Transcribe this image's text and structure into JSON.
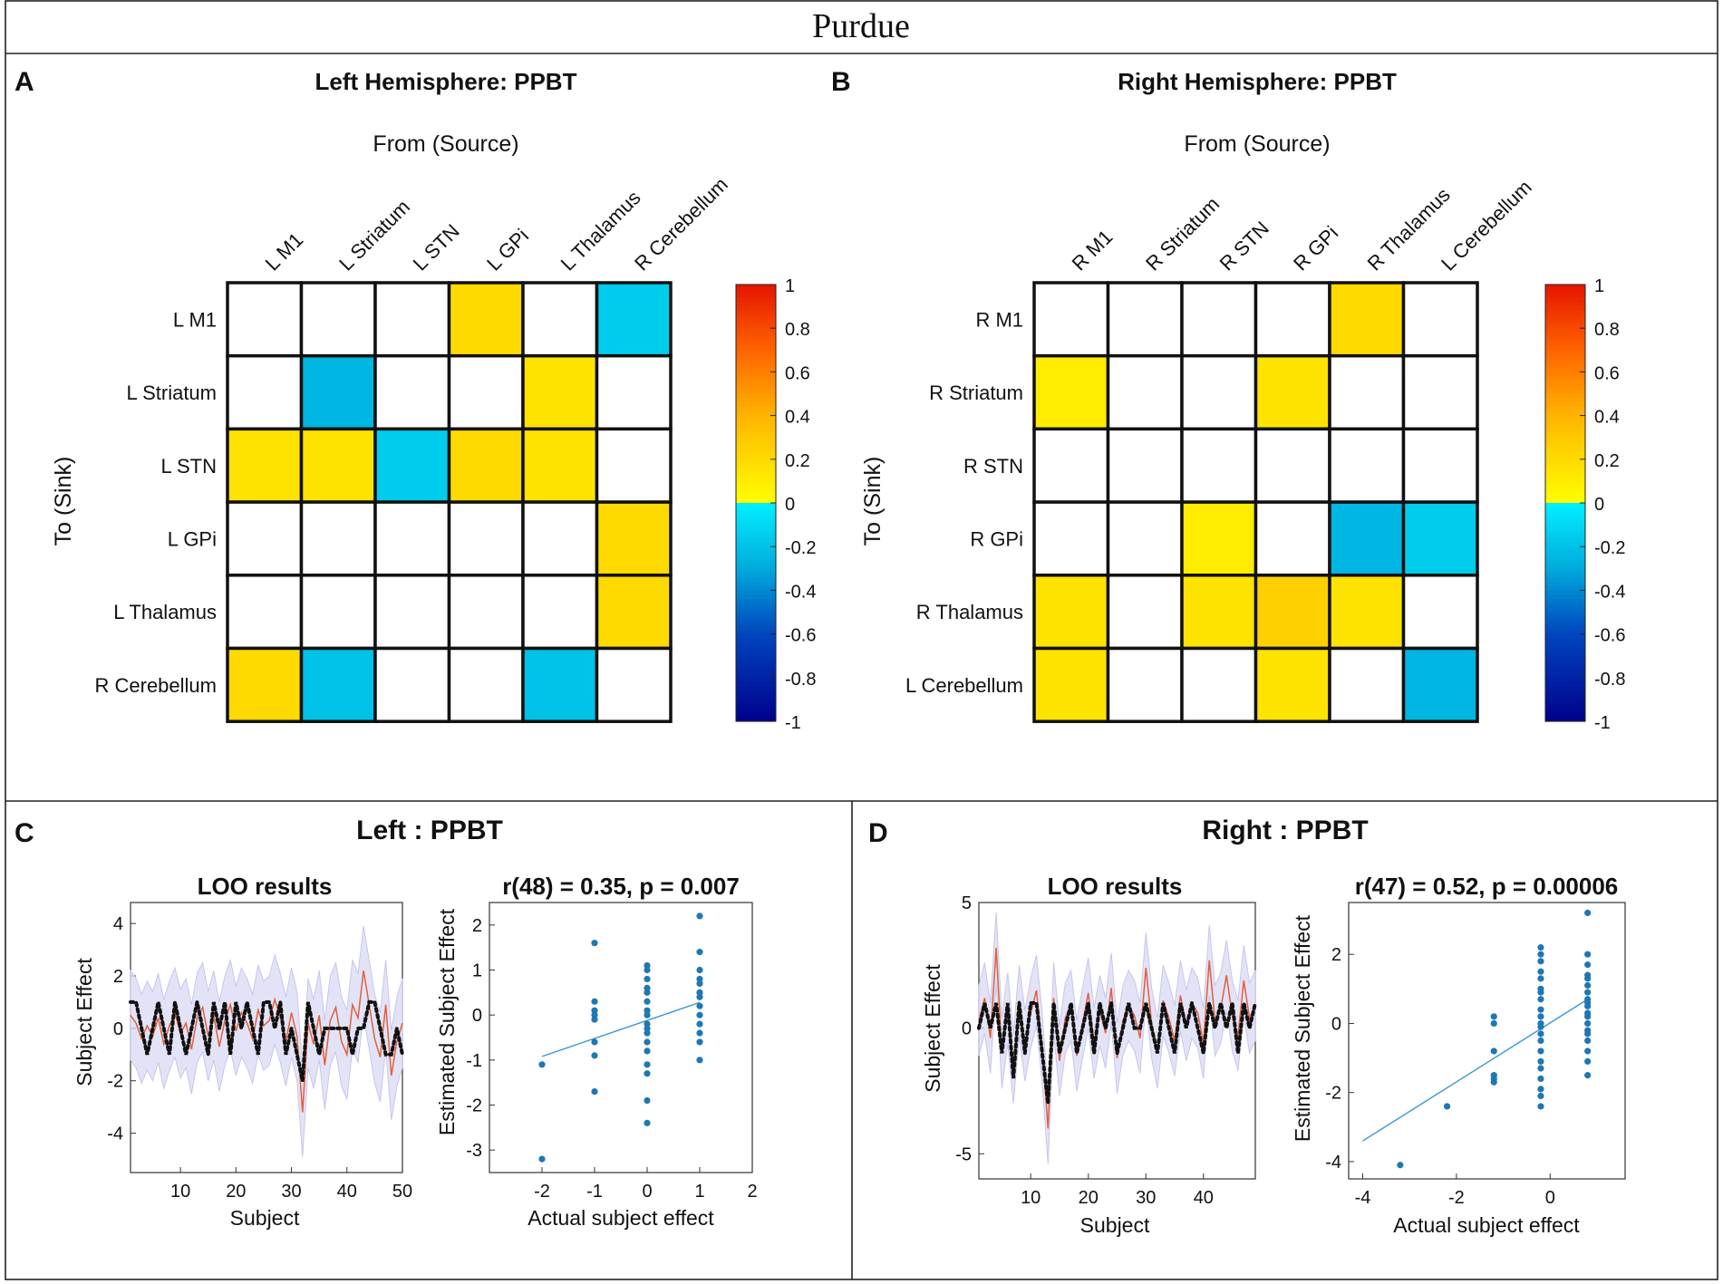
{
  "header": {
    "title": "Purdue"
  },
  "chart_data": [
    {
      "panel": "A",
      "type": "heatmap",
      "title": "Left Hemisphere: PPBT",
      "xlabel": "From (Source)",
      "ylabel": "To (Sink)",
      "columns": [
        "L M1",
        "L Striatum",
        "L STN",
        "L GPi",
        "L Thalamus",
        "R Cerebellum"
      ],
      "rows": [
        "L M1",
        "L Striatum",
        "L STN",
        "L GPi",
        "L Thalamus",
        "R Cerebellum"
      ],
      "values": [
        [
          0,
          0,
          0,
          0.2,
          0,
          -0.15
        ],
        [
          0,
          -0.25,
          0,
          0,
          0.15,
          0
        ],
        [
          0.15,
          0.15,
          -0.15,
          0.2,
          0.15,
          0
        ],
        [
          0,
          0,
          0,
          0,
          0,
          0.2
        ],
        [
          0,
          0,
          0,
          0,
          0,
          0.2
        ],
        [
          0.2,
          -0.2,
          0,
          0,
          -0.2,
          0
        ]
      ],
      "colorbar": {
        "range": [
          -1,
          1
        ],
        "ticks": [
          "1",
          "0.8",
          "0.6",
          "0.4",
          "0.2",
          "0",
          "-0.2",
          "-0.4",
          "-0.6",
          "-0.8",
          "-1"
        ]
      }
    },
    {
      "panel": "B",
      "type": "heatmap",
      "title": "Right Hemisphere: PPBT",
      "xlabel": "From (Source)",
      "ylabel": "To (Sink)",
      "columns": [
        "R M1",
        "R Striatum",
        "R STN",
        "R GPi",
        "R Thalamus",
        "L Cerebellum"
      ],
      "rows": [
        "R M1",
        "R Striatum",
        "R STN",
        "R GPi",
        "R Thalamus",
        "L Cerebellum"
      ],
      "values": [
        [
          0,
          0,
          0,
          0,
          0.2,
          0
        ],
        [
          0.1,
          0,
          0,
          0.15,
          0,
          0
        ],
        [
          0,
          0,
          0,
          0,
          0,
          0
        ],
        [
          0,
          0,
          0.1,
          0,
          -0.25,
          -0.15
        ],
        [
          0.15,
          0,
          0.15,
          0.25,
          0.15,
          0
        ],
        [
          0.15,
          0,
          0,
          0.15,
          0,
          -0.25
        ]
      ],
      "colorbar": {
        "range": [
          -1,
          1
        ],
        "ticks": [
          "1",
          "0.8",
          "0.6",
          "0.4",
          "0.2",
          "0",
          "-0.2",
          "-0.4",
          "-0.6",
          "-0.8",
          "-1"
        ]
      }
    },
    {
      "panel": "C",
      "type": "line",
      "section_title": "Left : PPBT",
      "title": "LOO results",
      "xlabel": "Subject",
      "ylabel": "Subject Effect",
      "xlim": [
        1,
        50
      ],
      "ylim": [
        -5.5,
        4.8
      ],
      "xticks": [
        "10",
        "20",
        "30",
        "40",
        "50"
      ],
      "yticks": [
        "4",
        "2",
        "0",
        "-2",
        "-4"
      ],
      "x": [
        1,
        2,
        3,
        4,
        5,
        6,
        7,
        8,
        9,
        10,
        11,
        12,
        13,
        14,
        15,
        16,
        17,
        18,
        19,
        20,
        21,
        22,
        23,
        24,
        25,
        26,
        27,
        28,
        29,
        30,
        31,
        32,
        33,
        34,
        35,
        36,
        37,
        38,
        39,
        40,
        41,
        42,
        43,
        44,
        45,
        46,
        47,
        48,
        49,
        50
      ],
      "series": [
        {
          "name": "actual",
          "style": "dotted",
          "values": [
            1,
            1,
            0,
            -1,
            0,
            1,
            0,
            -1,
            1,
            0,
            -1,
            0,
            1,
            0,
            -1,
            1,
            0,
            1,
            -1,
            1,
            0,
            1,
            0,
            -1,
            1,
            1,
            0,
            1,
            -1,
            0,
            -1,
            -2,
            1,
            0,
            -1,
            0,
            0,
            0,
            0,
            0,
            -1,
            0,
            0,
            1,
            1,
            0,
            -1,
            -1,
            0,
            -1
          ]
        },
        {
          "name": "estimated",
          "style": "line",
          "values": [
            0.5,
            0.2,
            -0.4,
            0.1,
            -0.3,
            0.4,
            -0.6,
            0.1,
            0.6,
            -0.2,
            0.2,
            -0.8,
            0.4,
            0.8,
            -0.3,
            0.5,
            -0.7,
            0.3,
            0.9,
            -0.1,
            0.6,
            0.2,
            -0.4,
            0.7,
            0.1,
            0.3,
            1.1,
            0.4,
            -0.5,
            0.6,
            -0.3,
            -3.2,
            0.2,
            -0.6,
            0.5,
            -1.4,
            0.3,
            0.8,
            -0.5,
            -1.0,
            0.9,
            0.4,
            2.2,
            0.9,
            -0.4,
            -1.1,
            0.9,
            -1.8,
            -0.5,
            0.2
          ]
        },
        {
          "name": "band",
          "style": "band",
          "halfwidth": 1.7
        }
      ]
    },
    {
      "panel": "C",
      "type": "scatter",
      "title": "r(48) = 0.35, p = 0.007",
      "xlabel": "Actual subject effect",
      "ylabel": "Estimated Subject Effect",
      "xlim": [
        -3,
        2
      ],
      "ylim": [
        -3.5,
        2.5
      ],
      "xticks": [
        "-2",
        "-1",
        "0",
        "1",
        "2"
      ],
      "yticks": [
        "2",
        "1",
        "0",
        "-1",
        "-2",
        "-3"
      ],
      "x": [
        -2,
        -2,
        -1,
        -1,
        -1,
        -1,
        -1,
        -1,
        -1,
        -1,
        0,
        0,
        0,
        0,
        0,
        0,
        0,
        0,
        0,
        0,
        0,
        0,
        0,
        0,
        0,
        0,
        0,
        1,
        1,
        1,
        1,
        1,
        1,
        1,
        1,
        1,
        1,
        1,
        1,
        1
      ],
      "y": [
        -1.1,
        -3.2,
        1.6,
        0.3,
        0.1,
        0,
        -0.1,
        -0.6,
        -0.9,
        -1.7,
        1.1,
        1.0,
        0.8,
        0.6,
        0.5,
        0.3,
        0.1,
        0,
        -0.2,
        -0.4,
        -0.6,
        -0.8,
        -1.1,
        -1.3,
        -1.9,
        -2.4,
        -0.3,
        2.2,
        1.4,
        1.0,
        0.7,
        0.5,
        0.4,
        0.2,
        0,
        -0.2,
        -0.4,
        -0.6,
        -1.0,
        0.8
      ],
      "fit_line": {
        "x": [
          -2,
          1
        ],
        "y": [
          -0.92,
          0.28
        ]
      }
    },
    {
      "panel": "D",
      "type": "line",
      "section_title": "Right : PPBT",
      "title": "LOO results",
      "xlabel": "Subject",
      "ylabel": "Subject Effect",
      "xlim": [
        1,
        49
      ],
      "ylim": [
        -6,
        5
      ],
      "xticks": [
        "10",
        "20",
        "30",
        "40"
      ],
      "yticks": [
        "5",
        "0",
        "-5"
      ],
      "x": [
        1,
        2,
        3,
        4,
        5,
        6,
        7,
        8,
        9,
        10,
        11,
        12,
        13,
        14,
        15,
        16,
        17,
        18,
        19,
        20,
        21,
        22,
        23,
        24,
        25,
        26,
        27,
        28,
        29,
        30,
        31,
        32,
        33,
        34,
        35,
        36,
        37,
        38,
        39,
        40,
        41,
        42,
        43,
        44,
        45,
        46,
        47,
        48,
        49
      ],
      "series": [
        {
          "name": "actual",
          "style": "dotted",
          "values": [
            0,
            1,
            0,
            1,
            -1,
            1,
            -2,
            1,
            -1,
            1,
            1,
            -1,
            -3,
            1,
            -1,
            0,
            1,
            -1,
            0,
            1,
            -1,
            1,
            0,
            1,
            -1,
            0,
            1,
            0,
            0,
            1,
            0,
            -1,
            1,
            0,
            -1,
            1,
            0,
            1,
            0,
            -1,
            1,
            0,
            1,
            0,
            1,
            -1,
            1,
            0,
            1
          ]
        },
        {
          "name": "estimated",
          "style": "line",
          "values": [
            0.3,
            1.2,
            -0.4,
            3.2,
            -1.0,
            0.8,
            -1.6,
            1.1,
            -0.7,
            0.6,
            1.5,
            -0.8,
            -4.0,
            1.2,
            -1.3,
            0.4,
            0.9,
            -1.1,
            0.2,
            1.4,
            -0.6,
            0.7,
            -0.2,
            1.6,
            -1.2,
            0.3,
            0.9,
            0.5,
            -0.4,
            2.4,
            0.2,
            -1.0,
            1.1,
            0.4,
            -0.5,
            1.3,
            0.1,
            1.0,
            0.6,
            -0.6,
            2.7,
            0.3,
            0.8,
            2.1,
            0.5,
            -0.3,
            1.9,
            0.4,
            0.9
          ]
        },
        {
          "name": "band",
          "style": "band",
          "halfwidth": 1.4
        }
      ]
    },
    {
      "panel": "D",
      "type": "scatter",
      "title": "r(47) = 0.52, p = 0.00006",
      "xlabel": "Actual subject effect",
      "ylabel": "Estimated Subject Effect",
      "xlim": [
        -4.3,
        1.6
      ],
      "ylim": [
        -4.5,
        3.5
      ],
      "xticks": [
        "-4",
        "-2",
        "0"
      ],
      "yticks": [
        "2",
        "0",
        "-2",
        "-4"
      ],
      "x": [
        -3.2,
        -2.2,
        -1.2,
        -1.2,
        -1.2,
        -1.2,
        -1.2,
        -1.2,
        -0.2,
        -0.2,
        -0.2,
        -0.2,
        -0.2,
        -0.2,
        -0.2,
        -0.2,
        -0.2,
        -0.2,
        -0.2,
        -0.2,
        -0.2,
        -0.2,
        -0.2,
        -0.2,
        -0.2,
        -0.2,
        -0.2,
        -0.2,
        -0.2,
        0.8,
        0.8,
        0.8,
        0.8,
        0.8,
        0.8,
        0.8,
        0.8,
        0.8,
        0.8,
        0.8,
        0.8,
        0.8,
        0.8,
        0.8,
        0.8,
        0.8,
        0.8,
        0.8
      ],
      "y": [
        -4.1,
        -2.4,
        0.2,
        0,
        -0.8,
        -1.5,
        -1.7,
        -1.6,
        2.2,
        2.0,
        1.8,
        1.3,
        1.0,
        0.7,
        0.4,
        0.2,
        0,
        -0.3,
        -0.5,
        -0.8,
        -1.1,
        -1.3,
        -1.6,
        -1.9,
        -2.1,
        -2.4,
        -0.1,
        1.5,
        0.9,
        3.2,
        2.0,
        1.7,
        1.3,
        1.1,
        0.9,
        0.7,
        0.5,
        0.3,
        0.2,
        0,
        -0.3,
        -0.5,
        -0.8,
        -1.1,
        -1.5,
        1.4,
        0.6,
        -0.2
      ],
      "fit_line": {
        "x": [
          -4,
          0.8
        ],
        "y": [
          -3.4,
          0.7
        ]
      }
    }
  ],
  "panel_labels": [
    "A",
    "B",
    "C",
    "D"
  ]
}
